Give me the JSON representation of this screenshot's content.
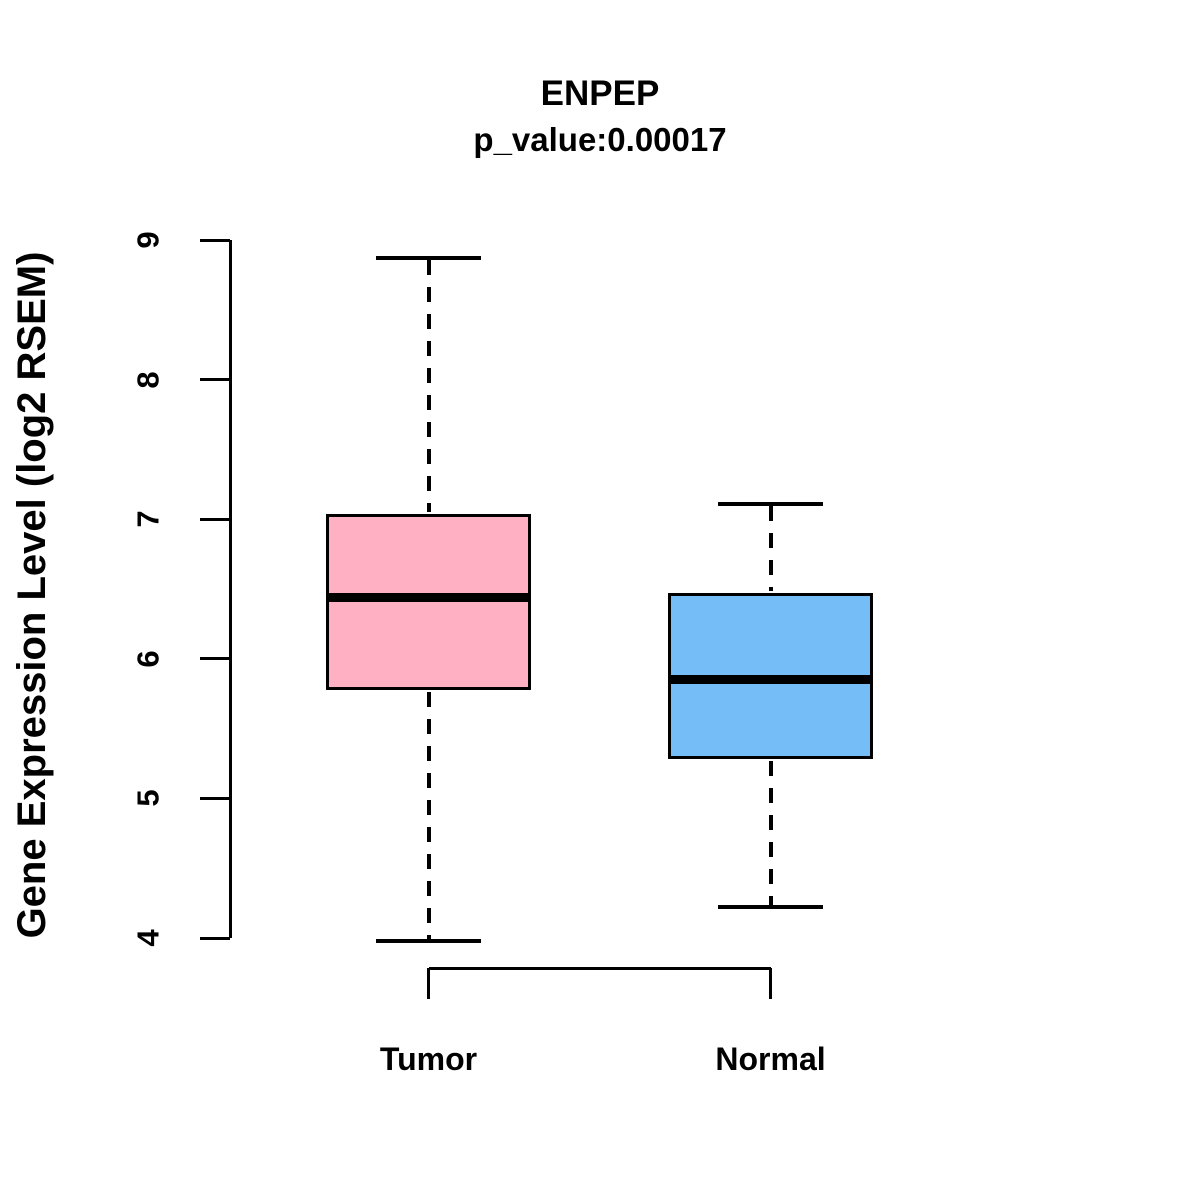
{
  "chart_data": {
    "type": "boxplot",
    "title": "ENPEP",
    "subtitle": "p_value:0.00017",
    "ylabel": "Gene Expression Level (log2 RSEM)",
    "xlabel": "",
    "ylim": [
      4,
      9
    ],
    "yticks": [
      4,
      5,
      6,
      7,
      8,
      9
    ],
    "grid": false,
    "legend": null,
    "categories": [
      "Tumor",
      "Normal"
    ],
    "groups": [
      {
        "label": "Tumor",
        "color": "#FFB1C3",
        "whisker_low": 3.98,
        "q1": 5.78,
        "median": 6.44,
        "q3": 7.04,
        "whisker_high": 8.87
      },
      {
        "label": "Normal",
        "color": "#74BDF6",
        "whisker_low": 4.22,
        "q1": 5.28,
        "median": 5.85,
        "q3": 6.47,
        "whisker_high": 7.11
      }
    ],
    "line_color": "#000000",
    "background_color": "#FFFFFF"
  }
}
